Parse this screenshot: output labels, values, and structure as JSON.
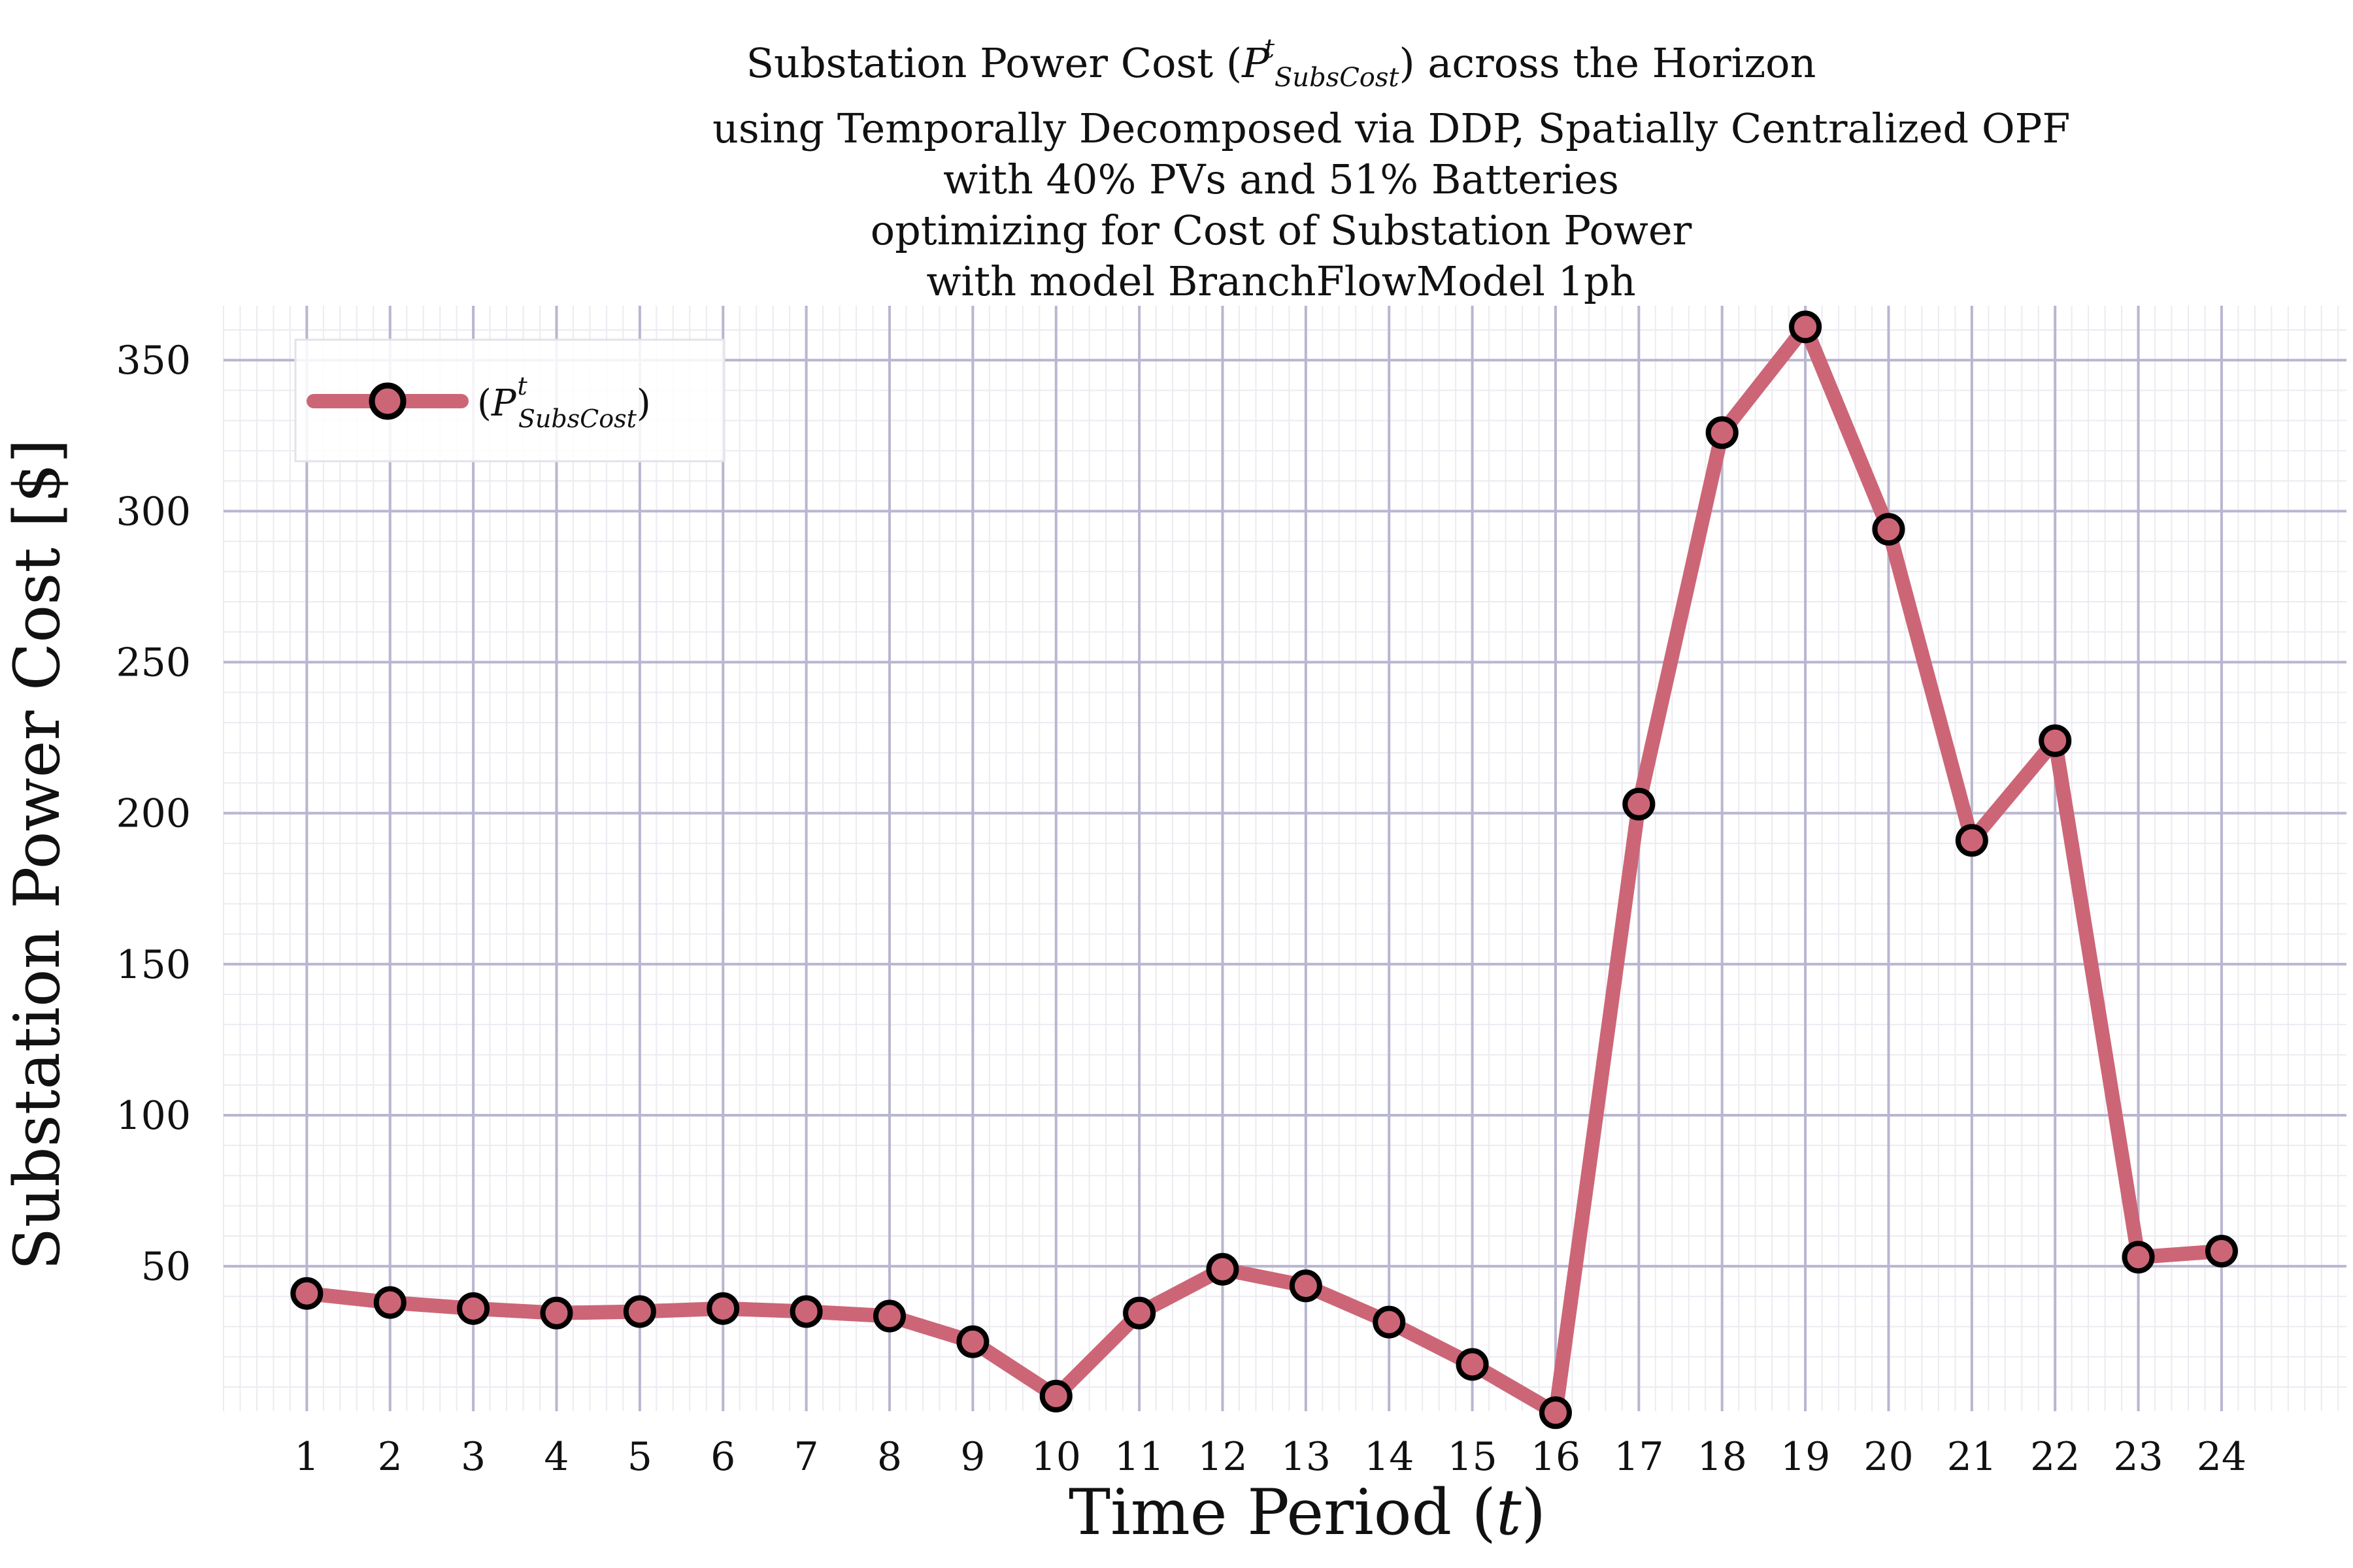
{
  "title": {
    "line1_prefix": "Substation Power Cost (",
    "line1_symbol": "P",
    "line1_superscript": "t",
    "line1_subscript": "SubsCost",
    "line1_suffix": ") across the Horizon",
    "line2": "using Temporally Decomposed via DDP, Spatially Centralized OPF",
    "line3": "with 40% PVs and 51% Batteries",
    "line4": "optimizing for Cost of Substation Power",
    "line5": "with model BranchFlowModel 1ph"
  },
  "colors": {
    "line": "#cc6677",
    "marker_fill": "#cc6677",
    "marker_edge": "#000000",
    "grid_major": "#b8b6d0",
    "grid_minor": "#ebebf1",
    "text": "#111111"
  },
  "chart_data": {
    "type": "line",
    "xlabel": "Time Period (t)",
    "ylabel": "Substation Power Cost [$]",
    "xlim": [
      0,
      25.5
    ],
    "ylim": [
      2,
      368
    ],
    "x_ticks": [
      1,
      2,
      3,
      4,
      5,
      6,
      7,
      8,
      9,
      10,
      11,
      12,
      13,
      14,
      15,
      16,
      17,
      18,
      19,
      20,
      21,
      22,
      23,
      24
    ],
    "y_ticks": [
      50,
      100,
      150,
      200,
      250,
      300,
      350
    ],
    "grid": true,
    "minor_grid": true,
    "legend_position": "top-left",
    "series": [
      {
        "name": "(P^t_SubsCost)",
        "legend_symbol": "P",
        "legend_superscript": "t",
        "legend_subscript": "SubsCost",
        "x": [
          1,
          2,
          3,
          4,
          5,
          6,
          7,
          8,
          9,
          10,
          11,
          12,
          13,
          14,
          15,
          16,
          17,
          18,
          19,
          20,
          21,
          22,
          23,
          24
        ],
        "y": [
          41,
          38,
          36,
          34.5,
          35,
          36,
          35,
          33.5,
          25,
          7,
          34.5,
          49,
          43.5,
          31.5,
          17.5,
          1.5,
          203,
          326,
          361,
          294,
          191,
          224,
          53,
          55
        ]
      }
    ]
  }
}
